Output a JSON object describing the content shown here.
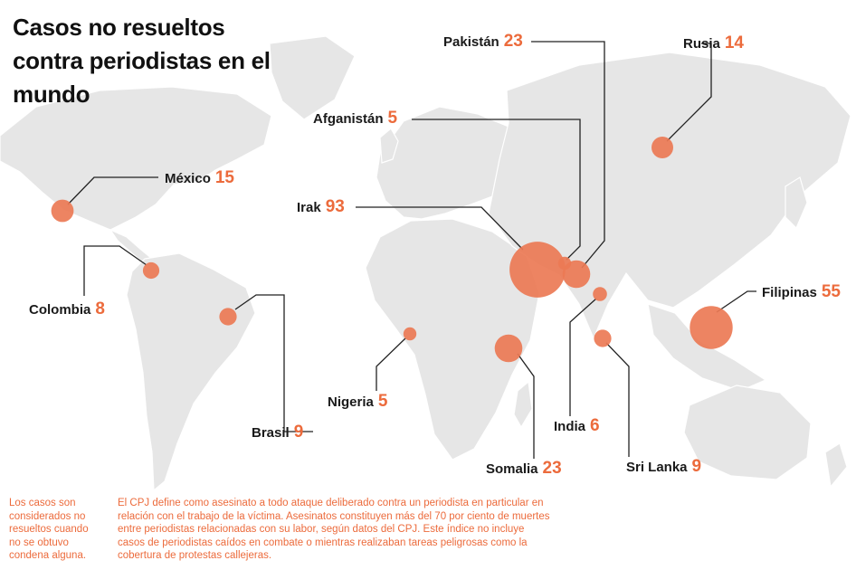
{
  "title": "Casos no resueltos contra periodistas en el mundo",
  "colors": {
    "bubble": "#ec7a55",
    "value": "#ec6b3c",
    "land": "#e6e6e6",
    "leader": "#222222"
  },
  "countries": [
    {
      "name": "México",
      "value": 15
    },
    {
      "name": "Colombia",
      "value": 8
    },
    {
      "name": "Brasil",
      "value": 9
    },
    {
      "name": "Nigeria",
      "value": 5
    },
    {
      "name": "Somalia",
      "value": 23
    },
    {
      "name": "Irak",
      "value": 93
    },
    {
      "name": "Afganistán",
      "value": 5
    },
    {
      "name": "Pakistán",
      "value": 23
    },
    {
      "name": "India",
      "value": 6
    },
    {
      "name": "Sri Lanka",
      "value": 9
    },
    {
      "name": "Rusia",
      "value": 14
    },
    {
      "name": "Filipinas",
      "value": 55
    }
  ],
  "notes": {
    "left": "Los casos son considerados no resueltos cuando no se obtuvo condena alguna.",
    "right": "El CPJ define como asesinato a todo ataque deliberado contra un periodista en particular en relación con el trabajo de la víctima. Asesinatos constituyen más del 70 por ciento de muertes entre periodistas relacionadas con su labor, según datos del CPJ. Este índice no incluye casos de periodistas caídos en combate o mientras realizaban tareas peligrosas como la cobertura de protestas callejeras."
  }
}
